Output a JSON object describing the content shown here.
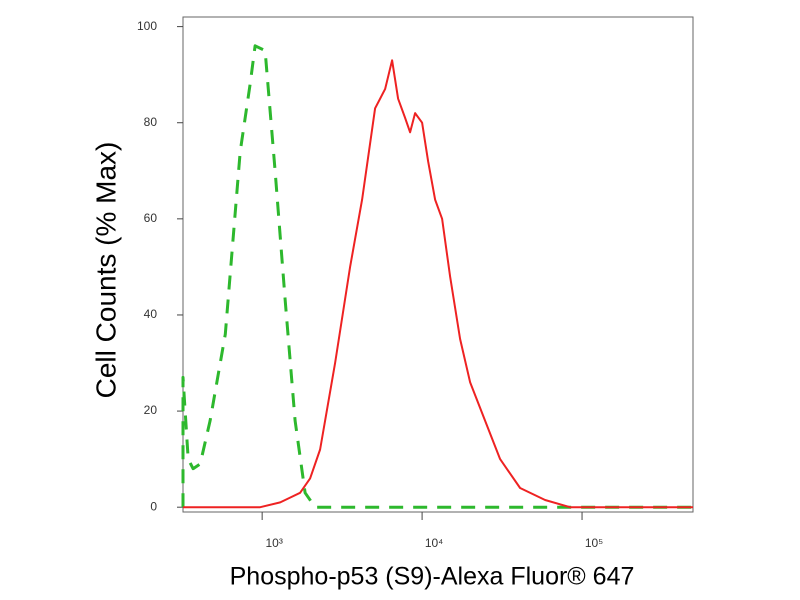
{
  "chart_data": {
    "type": "line",
    "x_label": "Phospho-p53 (S9)-Alexa Fluor® 647",
    "y_label": "Cell Counts (% Max)",
    "xscale": "log",
    "xlim": [
      320,
      494000
    ],
    "ylim": [
      -1,
      102
    ],
    "xticks": [
      {
        "value": 1000,
        "label": "10³"
      },
      {
        "value": 10000,
        "label": "10⁴"
      },
      {
        "value": 100000,
        "label": "10⁵"
      }
    ],
    "yticks": [
      0,
      20,
      40,
      60,
      80,
      100
    ],
    "series": [
      {
        "color": "#2db82d",
        "dash": true,
        "x": [
          320,
          320,
          345,
          370,
          410,
          473,
          588,
          729,
          841,
          904,
          1044,
          1205,
          1393,
          1607,
          1856,
          2143,
          494000
        ],
        "values": [
          0,
          27,
          10,
          8,
          9,
          18,
          36,
          74,
          88,
          96,
          95,
          70,
          43,
          18,
          3,
          0,
          0
        ]
      },
      {
        "color": "#ee2222",
        "dash": false,
        "x": [
          320,
          972,
          1296,
          1496,
          1728,
          1995,
          2304,
          2858,
          3548,
          4217,
          5082,
          5871,
          6494,
          7079,
          7834,
          8414,
          9036,
          10000,
          10901,
          12053,
          13335,
          14962,
          17282,
          19953,
          24774,
          30726,
          40973,
          58750,
          84140,
          494000
        ],
        "values": [
          0,
          0,
          1,
          2,
          3,
          6,
          12,
          30,
          50,
          64,
          83,
          87,
          93,
          85,
          81,
          78,
          82,
          80,
          72,
          64,
          60,
          48,
          35,
          26,
          18,
          10,
          4,
          1.5,
          0,
          0
        ]
      }
    ]
  }
}
